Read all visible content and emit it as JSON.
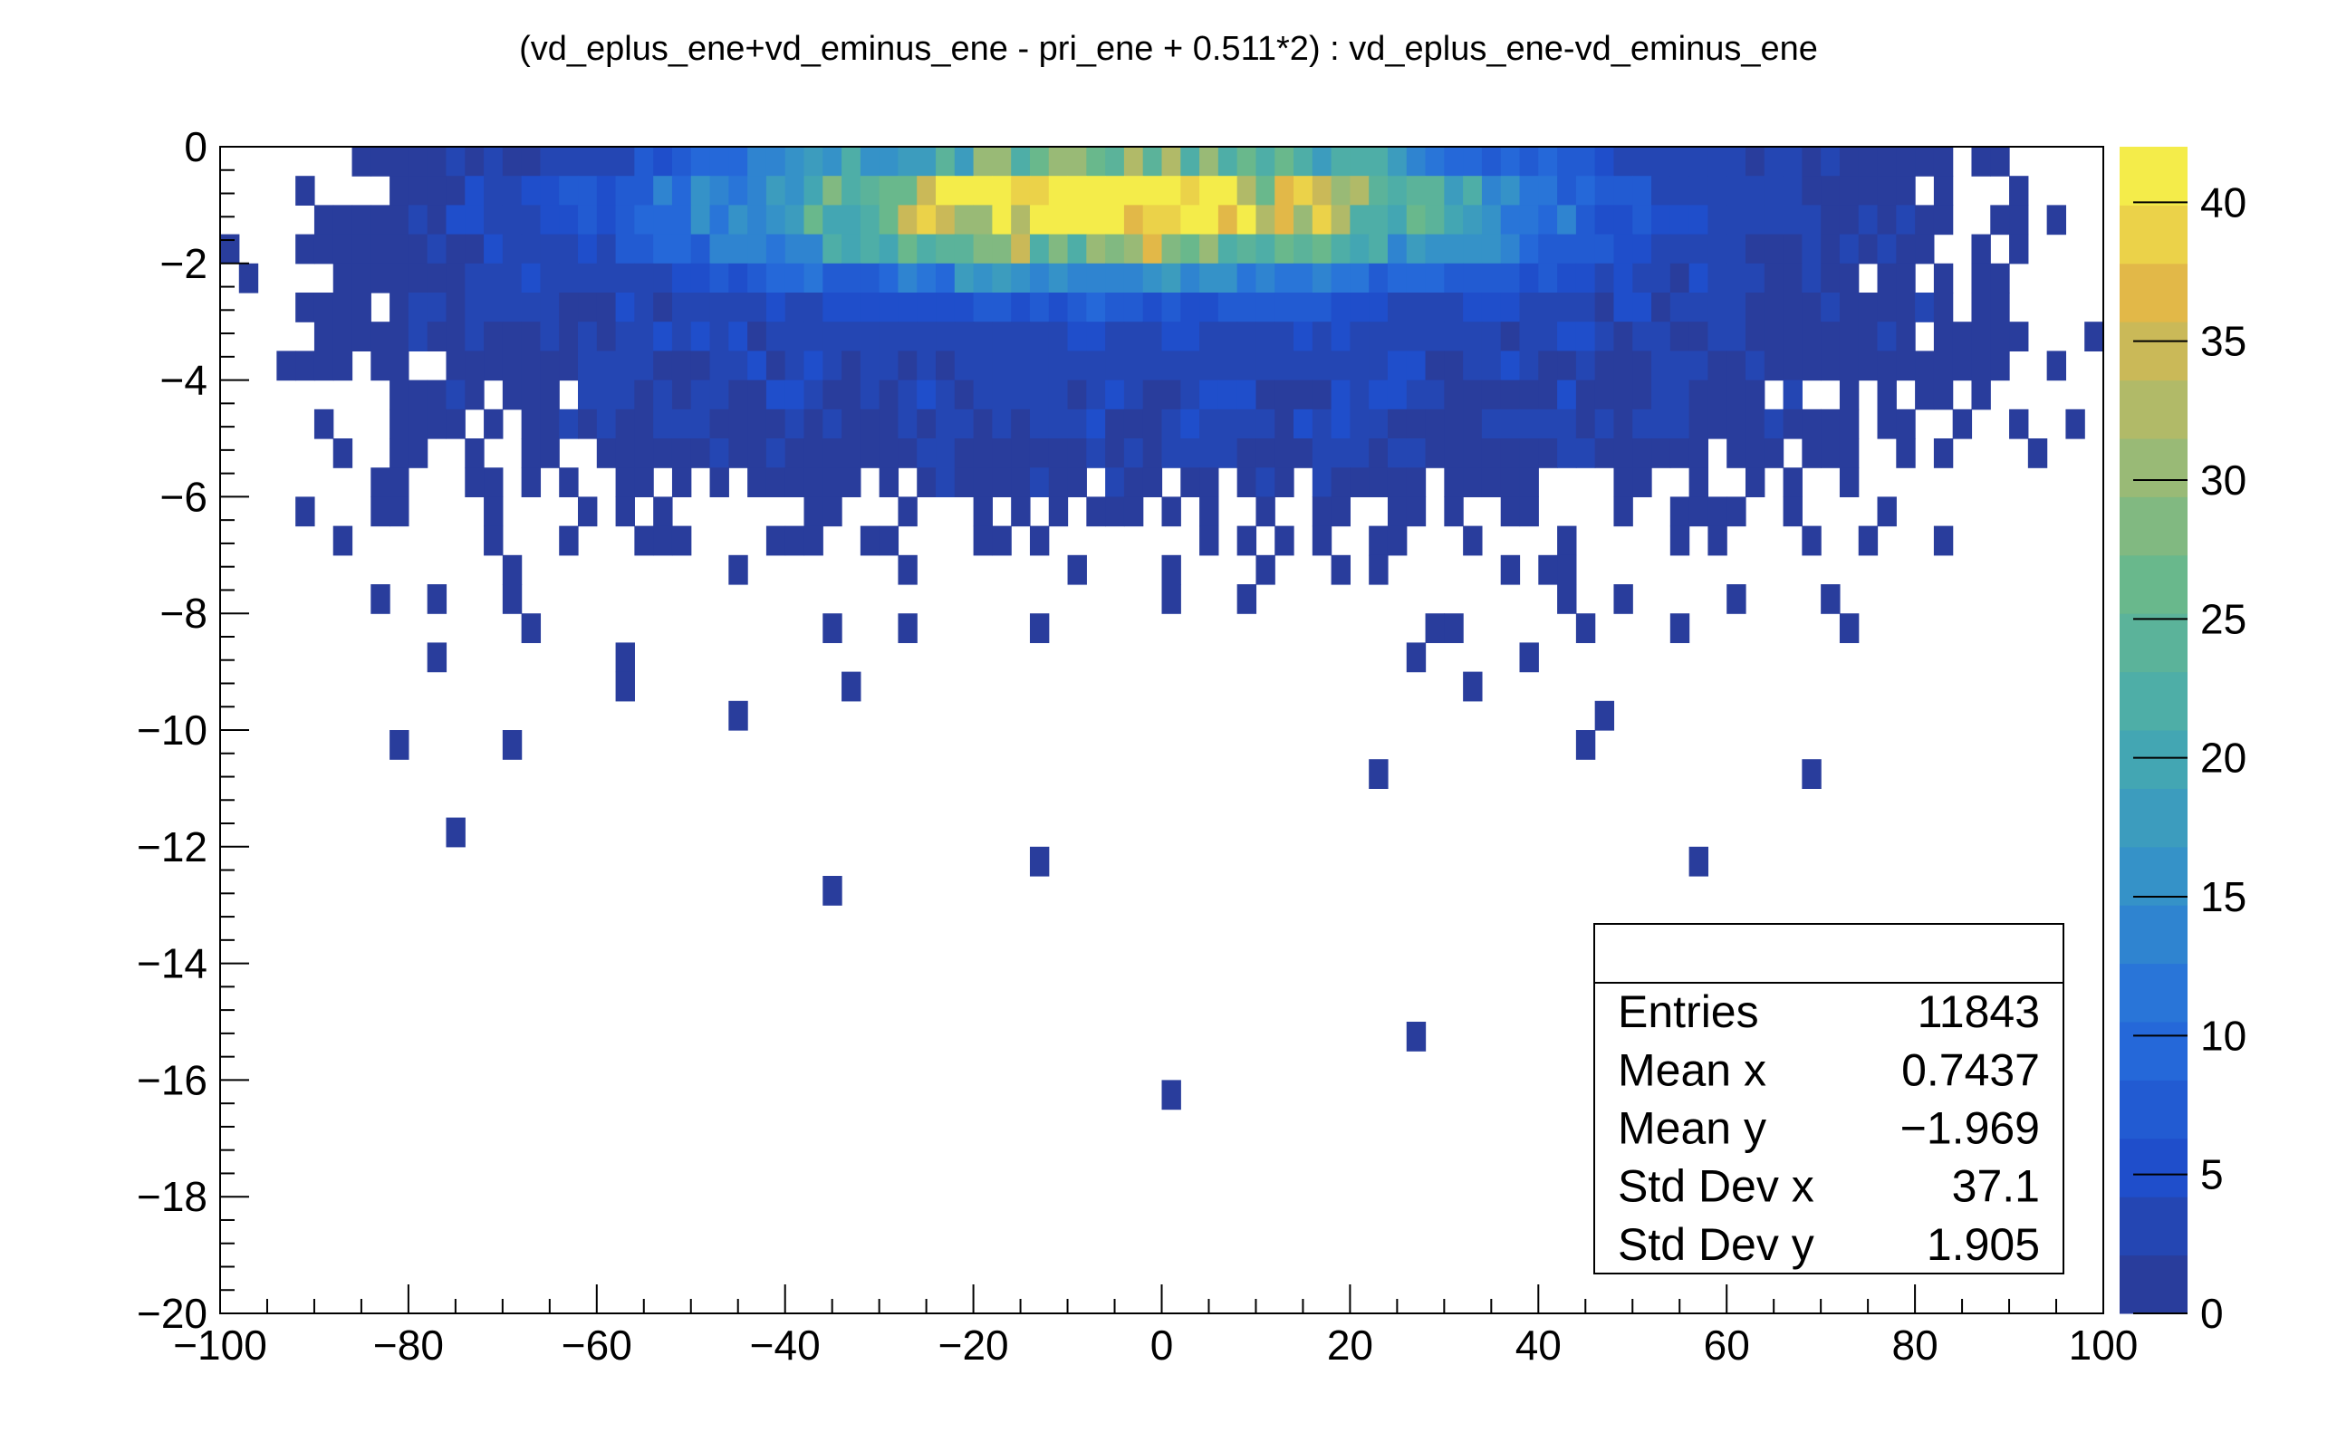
{
  "chart_data": {
    "type": "heatmap",
    "title": "(vd_eplus_ene+vd_eminus_ene - pri_ene + 0.511*2) : vd_eplus_ene-vd_eminus_ene",
    "xlabel": "",
    "ylabel": "",
    "xlim": [
      -100,
      100
    ],
    "ylim": [
      -20,
      0
    ],
    "x_ticks": [
      -100,
      -80,
      -60,
      -40,
      -20,
      0,
      20,
      40,
      60,
      80,
      100
    ],
    "y_ticks": [
      0,
      -2,
      -4,
      -6,
      -8,
      -10,
      -12,
      -14,
      -16,
      -18,
      -20
    ],
    "colorbar": {
      "range": [
        0,
        42
      ],
      "ticks": [
        0,
        5,
        10,
        15,
        20,
        25,
        30,
        35,
        40
      ],
      "levels": 20,
      "low_color": "#2b3990",
      "high_color": "#f9f94b"
    },
    "grid": false,
    "stats_box": {
      "title": "",
      "entries_label": "Entries",
      "entries_value": "11843",
      "mean_x_label": "Mean x",
      "mean_x_value": "0.7437",
      "mean_y_label": "Mean y",
      "mean_y_value": "−1.969",
      "std_x_label": "Std Dev x",
      "std_x_value": "37.1",
      "std_y_label": "Std Dev y",
      "std_y_value": "1.905",
      "placement": "bottom-right"
    },
    "density_model": {
      "x_bins": 100,
      "y_bins": 40,
      "peak_x": -5,
      "peak_y": -1,
      "core_sigma_x": 28,
      "core_sigma_y": 0.8,
      "peak_count": 42
    }
  }
}
